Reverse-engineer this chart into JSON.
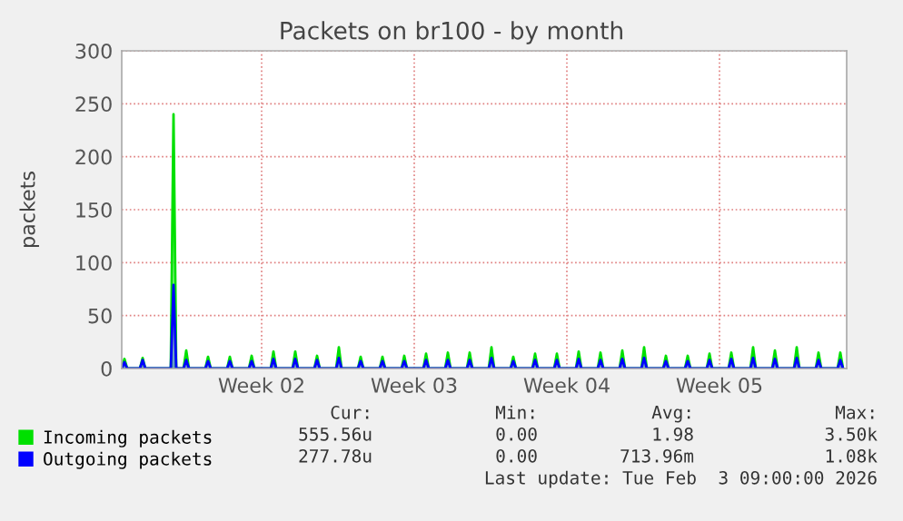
{
  "chart_data": {
    "type": "area",
    "title": "Packets on br100 - by month",
    "ylabel": "packets",
    "x": [
      "2026-01-01T03:00",
      "2026-01-01T06:00",
      "2026-01-01T09:00",
      "2026-01-01T23:00",
      "2026-01-02T02:00",
      "2026-01-02T05:00",
      "2026-01-03T09:00",
      "2026-01-03T12:00",
      "2026-01-03T15:00",
      "2026-01-03T23:00",
      "2026-01-04T02:00",
      "2026-01-04T05:00",
      "2026-01-04T23:00",
      "2026-01-05T02:00",
      "2026-01-05T05:00",
      "2026-01-05T23:00",
      "2026-01-06T02:00",
      "2026-01-06T05:00",
      "2026-01-06T23:00",
      "2026-01-07T02:00",
      "2026-01-07T05:00",
      "2026-01-07T23:00",
      "2026-01-08T02:00",
      "2026-01-08T05:00",
      "2026-01-08T23:00",
      "2026-01-09T02:00",
      "2026-01-09T05:00",
      "2026-01-09T23:00",
      "2026-01-10T02:00",
      "2026-01-10T05:00",
      "2026-01-10T23:00",
      "2026-01-11T02:00",
      "2026-01-11T05:00",
      "2026-01-11T23:00",
      "2026-01-12T02:00",
      "2026-01-12T05:00",
      "2026-01-12T23:00",
      "2026-01-13T02:00",
      "2026-01-13T05:00",
      "2026-01-13T23:00",
      "2026-01-14T02:00",
      "2026-01-14T05:00",
      "2026-01-14T23:00",
      "2026-01-15T02:00",
      "2026-01-15T05:00",
      "2026-01-15T23:00",
      "2026-01-16T02:00",
      "2026-01-16T05:00",
      "2026-01-16T23:00",
      "2026-01-17T02:00",
      "2026-01-17T05:00",
      "2026-01-17T23:00",
      "2026-01-18T02:00",
      "2026-01-18T05:00",
      "2026-01-18T23:00",
      "2026-01-19T02:00",
      "2026-01-19T05:00",
      "2026-01-19T23:00",
      "2026-01-20T02:00",
      "2026-01-20T05:00",
      "2026-01-20T23:00",
      "2026-01-21T02:00",
      "2026-01-21T05:00",
      "2026-01-21T23:00",
      "2026-01-22T02:00",
      "2026-01-22T05:00",
      "2026-01-22T23:00",
      "2026-01-23T02:00",
      "2026-01-23T05:00",
      "2026-01-23T23:00",
      "2026-01-24T02:00",
      "2026-01-24T05:00",
      "2026-01-24T23:00",
      "2026-01-25T02:00",
      "2026-01-25T05:00",
      "2026-01-25T23:00",
      "2026-01-26T02:00",
      "2026-01-26T05:00",
      "2026-01-26T23:00",
      "2026-01-27T02:00",
      "2026-01-27T05:00",
      "2026-01-27T23:00",
      "2026-01-28T02:00",
      "2026-01-28T05:00",
      "2026-01-28T23:00",
      "2026-01-29T02:00",
      "2026-01-29T05:00",
      "2026-01-29T23:00",
      "2026-01-30T02:00",
      "2026-01-30T05:00",
      "2026-01-30T23:00",
      "2026-01-31T02:00",
      "2026-01-31T05:00",
      "2026-01-31T23:00",
      "2026-02-01T02:00",
      "2026-02-01T05:00",
      "2026-02-01T23:00",
      "2026-02-02T02:00",
      "2026-02-02T05:00",
      "2026-02-02T23:00",
      "2026-02-03T02:00",
      "2026-02-03T05:00"
    ],
    "series": [
      {
        "name": "Incoming packets",
        "color": "#00e000",
        "values": [
          0,
          9,
          0,
          0,
          10,
          0,
          0,
          240,
          0,
          0,
          17,
          0,
          0,
          11,
          0,
          0,
          11,
          0,
          0,
          12,
          0,
          0,
          16,
          0,
          0,
          16,
          0,
          0,
          12,
          0,
          0,
          20,
          0,
          0,
          11,
          0,
          0,
          11,
          0,
          0,
          12,
          0,
          0,
          14,
          0,
          0,
          15,
          0,
          0,
          15,
          0,
          0,
          20,
          0,
          0,
          11,
          0,
          0,
          14,
          0,
          0,
          14,
          0,
          0,
          16,
          0,
          0,
          15,
          0,
          0,
          17,
          0,
          0,
          20,
          0,
          0,
          12,
          0,
          0,
          12,
          0,
          0,
          14,
          0,
          0,
          15,
          0,
          0,
          20,
          0,
          0,
          17,
          0,
          0,
          20,
          0,
          0,
          15,
          0,
          0,
          15,
          0
        ]
      },
      {
        "name": "Outgoing packets",
        "color": "#0000ff",
        "values": [
          0,
          6,
          0,
          0,
          8,
          0,
          0,
          79,
          0,
          0,
          8,
          0,
          0,
          7,
          0,
          0,
          7,
          0,
          0,
          7,
          0,
          0,
          9,
          0,
          0,
          9,
          0,
          0,
          8,
          0,
          0,
          10,
          0,
          0,
          7,
          0,
          0,
          7,
          0,
          0,
          7,
          0,
          0,
          8,
          0,
          0,
          8,
          0,
          0,
          8,
          0,
          0,
          10,
          0,
          0,
          7,
          0,
          0,
          8,
          0,
          0,
          8,
          0,
          0,
          9,
          0,
          0,
          8,
          0,
          0,
          9,
          0,
          0,
          10,
          0,
          0,
          7,
          0,
          0,
          7,
          0,
          0,
          8,
          0,
          0,
          9,
          0,
          0,
          10,
          0,
          0,
          9,
          0,
          0,
          10,
          0,
          0,
          8,
          0,
          0,
          8,
          0
        ]
      }
    ],
    "xlim": [
      "2026-01-01T03:00",
      "2026-02-03T09:00"
    ],
    "xticks": [
      {
        "value": "2026-01-07T13:00",
        "label": "Week 02"
      },
      {
        "value": "2026-01-14T13:00",
        "label": "Week 03"
      },
      {
        "value": "2026-01-21T13:00",
        "label": "Week 04"
      },
      {
        "value": "2026-01-28T13:00",
        "label": "Week 05"
      }
    ],
    "ylim": [
      0,
      300
    ],
    "yticks": [
      0,
      50,
      100,
      150,
      200,
      250,
      300
    ],
    "grid": true,
    "legend": "bottom",
    "annotations": [
      "Cur:",
      "Min:",
      "Avg:",
      "Max:",
      "555.56u",
      "0.00",
      "1.98",
      "3.50k",
      "277.78u",
      "0.00",
      "713.96m",
      "1.08k",
      "Last update: Tue Feb  3 09:00:00 2026"
    ]
  }
}
